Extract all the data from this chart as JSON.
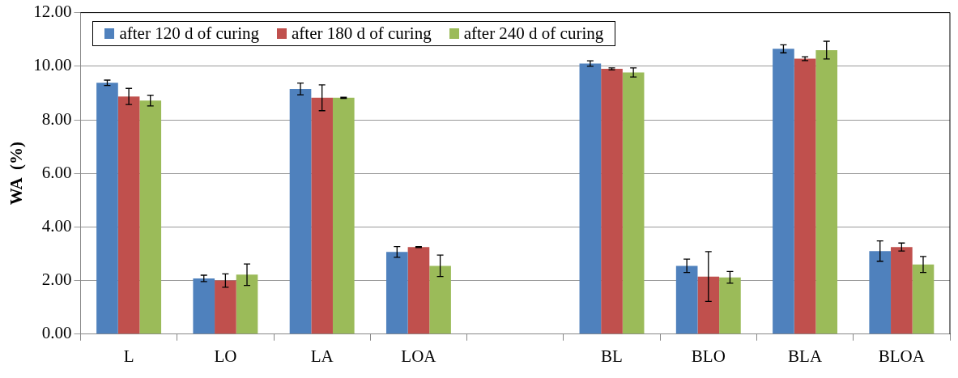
{
  "chart_data": {
    "type": "bar",
    "ylabel": "WA  (%)",
    "categories": [
      "L",
      "LO",
      "LA",
      "LOA",
      null,
      "BL",
      "BLO",
      "BLA",
      "BLOA"
    ],
    "series": [
      {
        "name": "after 120 d of curing",
        "color": "#4f81bd",
        "values": [
          9.38,
          2.08,
          9.15,
          3.07,
          null,
          10.1,
          2.55,
          10.65,
          3.1
        ],
        "errors": [
          0.1,
          0.12,
          0.22,
          0.2,
          null,
          0.1,
          0.25,
          0.15,
          0.38
        ]
      },
      {
        "name": "after 180 d of  curing",
        "color": "#c0504d",
        "values": [
          8.87,
          2.0,
          8.82,
          3.25,
          null,
          9.9,
          2.15,
          10.28,
          3.25
        ],
        "errors": [
          0.3,
          0.25,
          0.48,
          0.02,
          null,
          0.04,
          0.93,
          0.07,
          0.15
        ]
      },
      {
        "name": "after 240 d of  curing",
        "color": "#9bbb59",
        "values": [
          8.72,
          2.22,
          8.82,
          2.55,
          null,
          9.77,
          2.12,
          10.6,
          2.6
        ],
        "errors": [
          0.2,
          0.4,
          0.02,
          0.4,
          null,
          0.17,
          0.22,
          0.33,
          0.3
        ]
      }
    ],
    "ylim": [
      0,
      12
    ],
    "yticks": [
      {
        "value": 0,
        "label": "0.00"
      },
      {
        "value": 2,
        "label": "2.00"
      },
      {
        "value": 4,
        "label": "4.00"
      },
      {
        "value": 6,
        "label": "6.00"
      },
      {
        "value": 8,
        "label": "8.00"
      },
      {
        "value": 10,
        "label": "10.00"
      },
      {
        "value": 12,
        "label": "12.00"
      }
    ],
    "grid": "y",
    "legend": "top left"
  }
}
